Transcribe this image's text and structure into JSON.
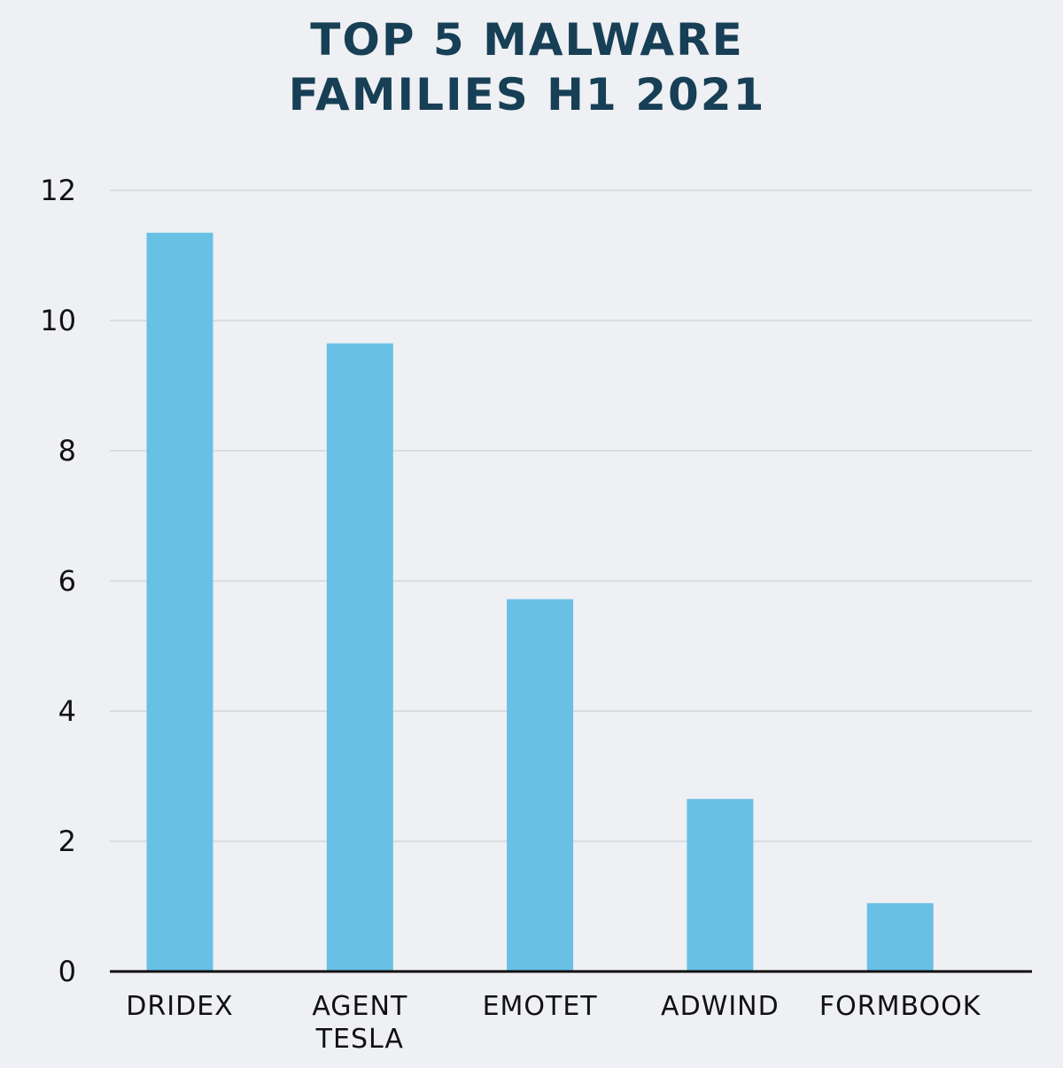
{
  "chart_data": {
    "type": "bar",
    "title_lines": [
      "TOP 5 MALWARE",
      "FAMILIES H1 2021"
    ],
    "categories": [
      [
        "DRIDEX"
      ],
      [
        "AGENT",
        "TESLA"
      ],
      [
        "EMOTET"
      ],
      [
        "ADWIND"
      ],
      [
        "FORMBOOK"
      ]
    ],
    "values": [
      11.35,
      9.65,
      5.72,
      2.65,
      1.05
    ],
    "yticks": [
      "0",
      "2",
      "4",
      "6",
      "8",
      "10",
      "12"
    ],
    "ylim": [
      0,
      12
    ],
    "xlabel": "",
    "ylabel": "",
    "grid": true,
    "legend": "none",
    "colors": {
      "bar": "#69c0e5",
      "title": "#173f55",
      "background": "#eef0f4",
      "grid": "#d9dce2",
      "axis": "#111111"
    }
  }
}
